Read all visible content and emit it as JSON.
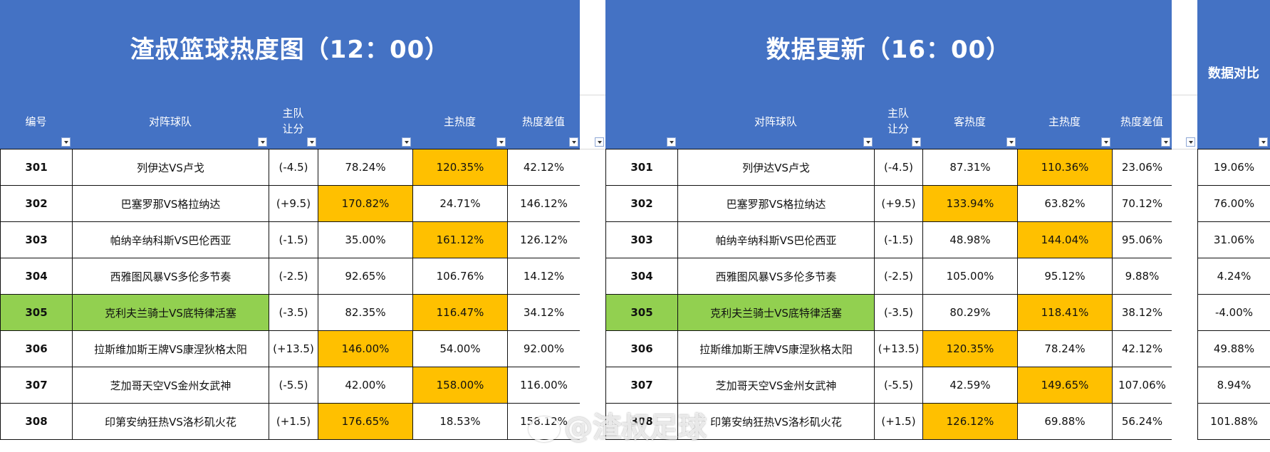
{
  "left": {
    "title": "渣叔篮球热度图（12：00）",
    "headers": {
      "id": "编号",
      "match": "对阵球队",
      "handicap_1": "主队",
      "handicap_2": "让分",
      "away_heat": "",
      "home_heat": "主热度",
      "diff": "热度差值"
    },
    "rows": [
      {
        "id": "301",
        "match": "列伊达VS卢戈",
        "handicap": "(-4.5)",
        "away": "78.24%",
        "home": "120.35%",
        "diff": "42.12%"
      },
      {
        "id": "302",
        "match": "巴塞罗那VS格拉纳达",
        "handicap": "(+9.5)",
        "away": "170.82%",
        "home": "24.71%",
        "diff": "146.12%"
      },
      {
        "id": "303",
        "match": "帕纳辛纳科斯VS巴伦西亚",
        "handicap": "(-1.5)",
        "away": "35.00%",
        "home": "161.12%",
        "diff": "126.12%"
      },
      {
        "id": "304",
        "match": "西雅图风暴VS多伦多节奏",
        "handicap": "(-2.5)",
        "away": "92.65%",
        "home": "106.76%",
        "diff": "14.12%"
      },
      {
        "id": "305",
        "match": "克利夫兰骑士VS底特律活塞",
        "handicap": "(-3.5)",
        "away": "82.35%",
        "home": "116.47%",
        "diff": "34.12%"
      },
      {
        "id": "306",
        "match": "拉斯维加斯王牌VS康涅狄格太阳",
        "handicap": "(+13.5)",
        "away": "146.00%",
        "home": "54.00%",
        "diff": "92.00%"
      },
      {
        "id": "307",
        "match": "芝加哥天空VS金州女武神",
        "handicap": "(-5.5)",
        "away": "42.00%",
        "home": "158.00%",
        "diff": "116.00%"
      },
      {
        "id": "308",
        "match": "印第安纳狂热VS洛杉矶火花",
        "handicap": "(+1.5)",
        "away": "176.65%",
        "home": "18.53%",
        "diff": "158.12%"
      }
    ]
  },
  "right": {
    "title": "数据更新（16：00）",
    "headers": {
      "id": "",
      "match": "对阵球队",
      "handicap_1": "主队",
      "handicap_2": "让分",
      "away_heat": "客热度",
      "home_heat": "主热度",
      "diff": "热度差值"
    },
    "rows": [
      {
        "id": "301",
        "match": "列伊达VS卢戈",
        "handicap": "(-4.5)",
        "away": "87.31%",
        "home": "110.36%",
        "diff": "23.06%"
      },
      {
        "id": "302",
        "match": "巴塞罗那VS格拉纳达",
        "handicap": "(+9.5)",
        "away": "133.94%",
        "home": "63.82%",
        "diff": "70.12%"
      },
      {
        "id": "303",
        "match": "帕纳辛纳科斯VS巴伦西亚",
        "handicap": "(-1.5)",
        "away": "48.98%",
        "home": "144.04%",
        "diff": "95.06%"
      },
      {
        "id": "304",
        "match": "西雅图风暴VS多伦多节奏",
        "handicap": "(-2.5)",
        "away": "105.00%",
        "home": "95.12%",
        "diff": "9.88%"
      },
      {
        "id": "305",
        "match": "克利夫兰骑士VS底特律活塞",
        "handicap": "(-3.5)",
        "away": "80.29%",
        "home": "118.41%",
        "diff": "38.12%"
      },
      {
        "id": "306",
        "match": "拉斯维加斯王牌VS康涅狄格太阳",
        "handicap": "(+13.5)",
        "away": "120.35%",
        "home": "78.24%",
        "diff": "42.12%"
      },
      {
        "id": "307",
        "match": "芝加哥天空VS金州女武神",
        "handicap": "(-5.5)",
        "away": "42.59%",
        "home": "149.65%",
        "diff": "107.06%"
      },
      {
        "id": "308",
        "match": "印第安纳狂热VS洛杉矶火花",
        "handicap": "(+1.5)",
        "away": "126.12%",
        "home": "69.88%",
        "diff": "56.24%"
      }
    ]
  },
  "compare": {
    "title": "数据对比",
    "values": [
      "19.06%",
      "76.00%",
      "31.06%",
      "4.24%",
      "-4.00%",
      "49.88%",
      "8.94%",
      "101.88%"
    ]
  },
  "watermark": "@渣叔足球",
  "colors": {
    "header_blue": "#4472c4",
    "highlight_orange": "#ffc000",
    "highlight_green": "#92d050"
  }
}
